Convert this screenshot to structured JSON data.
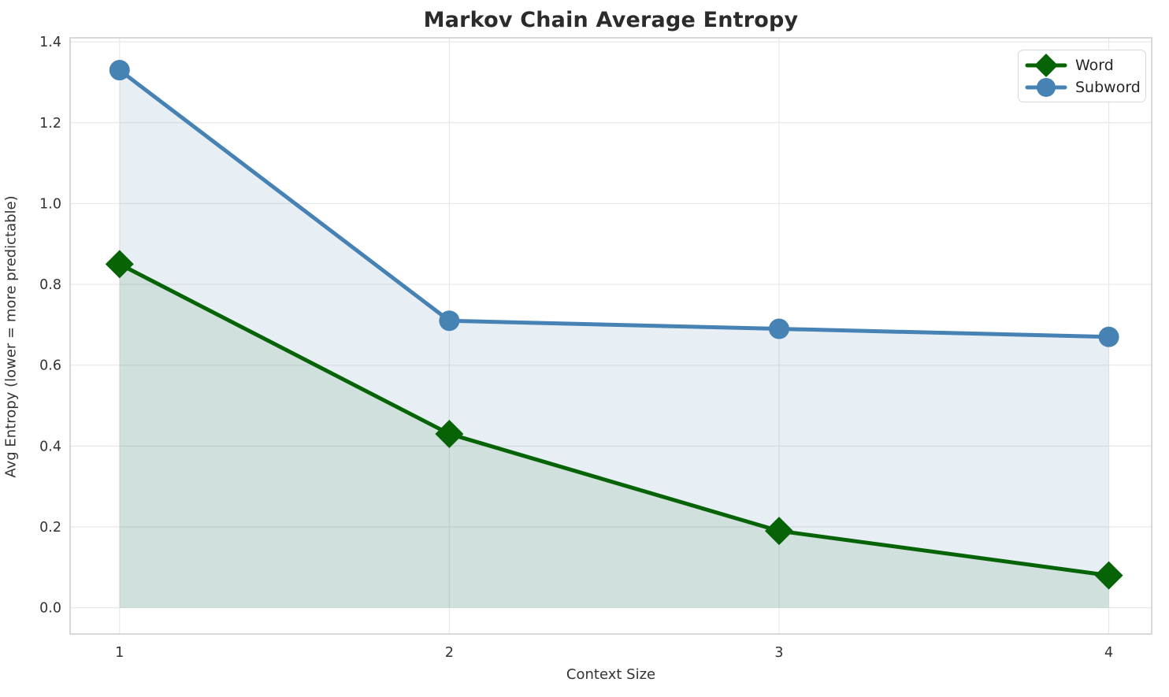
{
  "chart_data": {
    "type": "line",
    "title": "Markov Chain Average Entropy",
    "xlabel": "Context Size",
    "ylabel": "Avg Entropy (lower = more predictable)",
    "x": [
      1,
      2,
      3,
      4
    ],
    "series": [
      {
        "name": "Word",
        "values": [
          0.85,
          0.43,
          0.19,
          0.08
        ],
        "color": "#066406",
        "marker": "diamond",
        "fill_to_zero": true,
        "fill_opacity": 0.1
      },
      {
        "name": "Subword",
        "values": [
          1.33,
          0.71,
          0.69,
          0.67
        ],
        "color": "#4682b4",
        "marker": "circle",
        "fill_to_zero": true,
        "fill_opacity": 0.13
      }
    ],
    "xticks": [
      1,
      2,
      3,
      4
    ],
    "xtick_labels": [
      "1",
      "2",
      "3",
      "4"
    ],
    "yticks": [
      0.0,
      0.2,
      0.4,
      0.6,
      0.8,
      1.0,
      1.2,
      1.4
    ],
    "ytick_labels": [
      "0.0",
      "0.2",
      "0.4",
      "0.6",
      "0.8",
      "1.0",
      "1.2",
      "1.4"
    ],
    "xlim": [
      0.85,
      4.13
    ],
    "ylim": [
      -0.065,
      1.41
    ],
    "grid": true,
    "legend_position": "upper right",
    "colors": {
      "grid": "#e8e8e8",
      "frame": "#cccccc",
      "tick_label": "#333333",
      "title": "#2b2b2b"
    }
  }
}
